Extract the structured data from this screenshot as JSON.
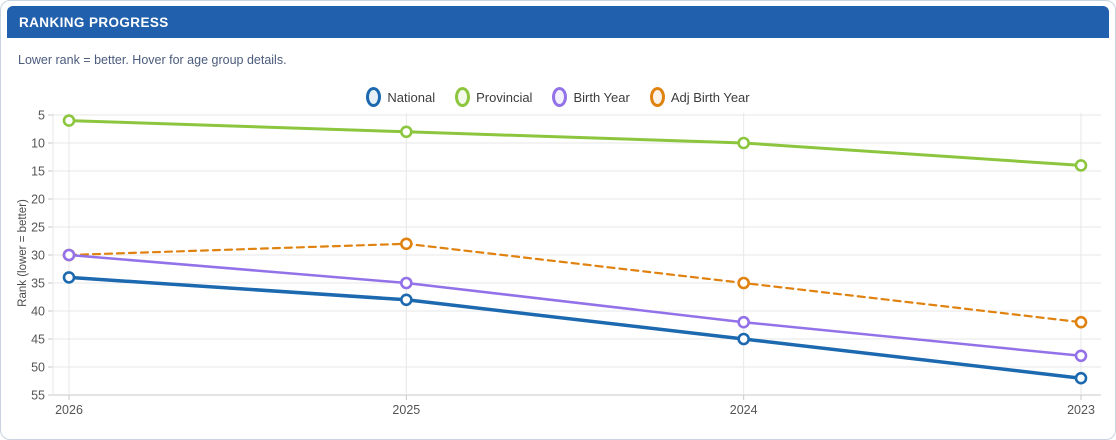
{
  "card": {
    "header": {
      "title": "RANKING PROGRESS"
    },
    "subtitle": "Lower rank = better. Hover for age group details."
  },
  "colors": {
    "header_bg": "#2160ac",
    "header_text": "#ffffff",
    "subtitle_text": "#4a5b7c",
    "grid_line": "#e7e7e7",
    "axis_line": "#c9c9c9",
    "axis_text": "#555555"
  },
  "chart_data": {
    "type": "line",
    "x_categories": [
      "2026",
      "2025",
      "2024",
      "2023"
    ],
    "ylabel": "Rank (lower = better)",
    "y_ticks": [
      5,
      10,
      15,
      20,
      25,
      30,
      35,
      40,
      45,
      50,
      55
    ],
    "y_inverted": true,
    "grid": true,
    "legend_position": "top-center",
    "series": [
      {
        "name": "National",
        "color": "#1c69b0",
        "style": "solid",
        "values": [
          34,
          38,
          45,
          52
        ]
      },
      {
        "name": "Provincial",
        "color": "#8cc63e",
        "style": "solid",
        "values": [
          6,
          8,
          10,
          14
        ]
      },
      {
        "name": "Birth Year",
        "color": "#9371e8",
        "style": "solid",
        "values": [
          30,
          35,
          42,
          48
        ]
      },
      {
        "name": "Adj Birth Year",
        "color": "#e0820f",
        "style": "dashed",
        "values": [
          30,
          28,
          35,
          42
        ]
      }
    ]
  }
}
